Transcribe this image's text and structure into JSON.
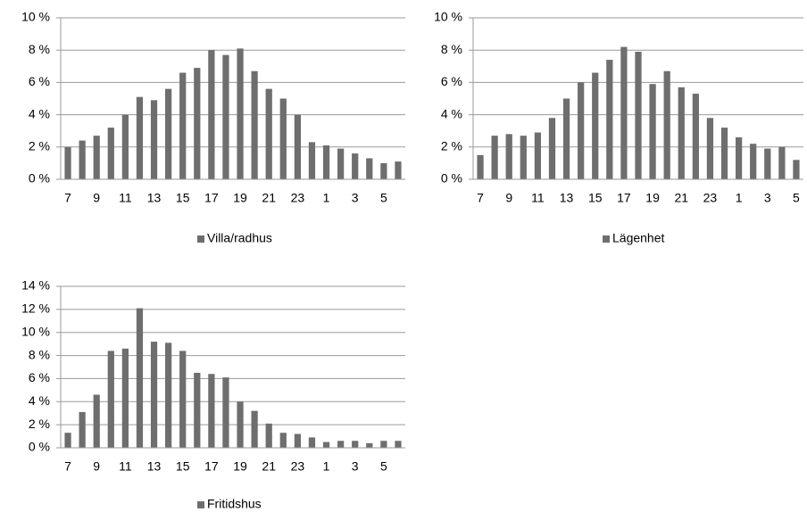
{
  "chart_data": [
    {
      "type": "bar",
      "categories": [
        "7",
        null,
        "9",
        null,
        "11",
        null,
        "13",
        null,
        "15",
        null,
        "17",
        null,
        "19",
        null,
        "21",
        null,
        "23",
        null,
        "1",
        null,
        "3",
        null,
        "5",
        null
      ],
      "series": [
        {
          "name": "Villa/radhus",
          "color": "#6e6e6e",
          "values": [
            2.0,
            2.4,
            2.7,
            3.2,
            4.0,
            5.1,
            4.9,
            5.6,
            6.6,
            6.9,
            8.0,
            7.7,
            8.1,
            6.7,
            5.6,
            5.0,
            4.0,
            2.3,
            2.1,
            1.9,
            1.6,
            1.3,
            1.0,
            1.1
          ]
        }
      ],
      "ylim": [
        0,
        10
      ],
      "yticks": [
        {
          "value": 0,
          "label": "0 %"
        },
        {
          "value": 2,
          "label": "2 %"
        },
        {
          "value": 4,
          "label": "4 %"
        },
        {
          "value": 6,
          "label": "6 %"
        },
        {
          "value": 8,
          "label": "8 %"
        },
        {
          "value": 10,
          "label": "10 %"
        }
      ],
      "grid": true,
      "legend": "bottom"
    },
    {
      "type": "bar",
      "categories": [
        "7",
        null,
        "9",
        null,
        "11",
        null,
        "13",
        null,
        "15",
        null,
        "17",
        null,
        "19",
        null,
        "21",
        null,
        "23",
        null,
        "1",
        null,
        "3",
        null,
        "5"
      ],
      "series": [
        {
          "name": "Lägenhet",
          "color": "#6e6e6e",
          "values": [
            1.5,
            2.7,
            2.8,
            2.7,
            2.9,
            3.8,
            5.0,
            6.0,
            6.6,
            7.4,
            8.2,
            7.9,
            5.9,
            6.7,
            5.7,
            5.3,
            3.8,
            3.2,
            2.6,
            2.2,
            1.9,
            2.0,
            1.2
          ]
        }
      ],
      "ylim": [
        0,
        10
      ],
      "yticks": [
        {
          "value": 0,
          "label": "0 %"
        },
        {
          "value": 2,
          "label": "2 %"
        },
        {
          "value": 4,
          "label": "4 %"
        },
        {
          "value": 6,
          "label": "6 %"
        },
        {
          "value": 8,
          "label": "8 %"
        },
        {
          "value": 10,
          "label": "10 %"
        }
      ],
      "grid": true,
      "legend": "bottom"
    },
    {
      "type": "bar",
      "categories": [
        "7",
        null,
        "9",
        null,
        "11",
        null,
        "13",
        null,
        "15",
        null,
        "17",
        null,
        "19",
        null,
        "21",
        null,
        "23",
        null,
        "1",
        null,
        "3",
        null,
        "5",
        null
      ],
      "series": [
        {
          "name": "Fritidshus",
          "color": "#6e6e6e",
          "values": [
            1.3,
            3.1,
            4.6,
            8.4,
            8.6,
            12.1,
            9.2,
            9.1,
            8.4,
            6.5,
            6.4,
            6.1,
            4.0,
            3.2,
            2.1,
            1.3,
            1.2,
            0.9,
            0.5,
            0.6,
            0.6,
            0.4,
            0.6,
            0.6
          ]
        }
      ],
      "ylim": [
        0,
        14
      ],
      "yticks": [
        {
          "value": 0,
          "label": "0 %"
        },
        {
          "value": 2,
          "label": "2 %"
        },
        {
          "value": 4,
          "label": "4 %"
        },
        {
          "value": 6,
          "label": "6 %"
        },
        {
          "value": 8,
          "label": "8 %"
        },
        {
          "value": 10,
          "label": "10 %"
        },
        {
          "value": 12,
          "label": "12 %"
        },
        {
          "value": 14,
          "label": "14 %"
        }
      ],
      "grid": true,
      "legend": "bottom"
    }
  ]
}
